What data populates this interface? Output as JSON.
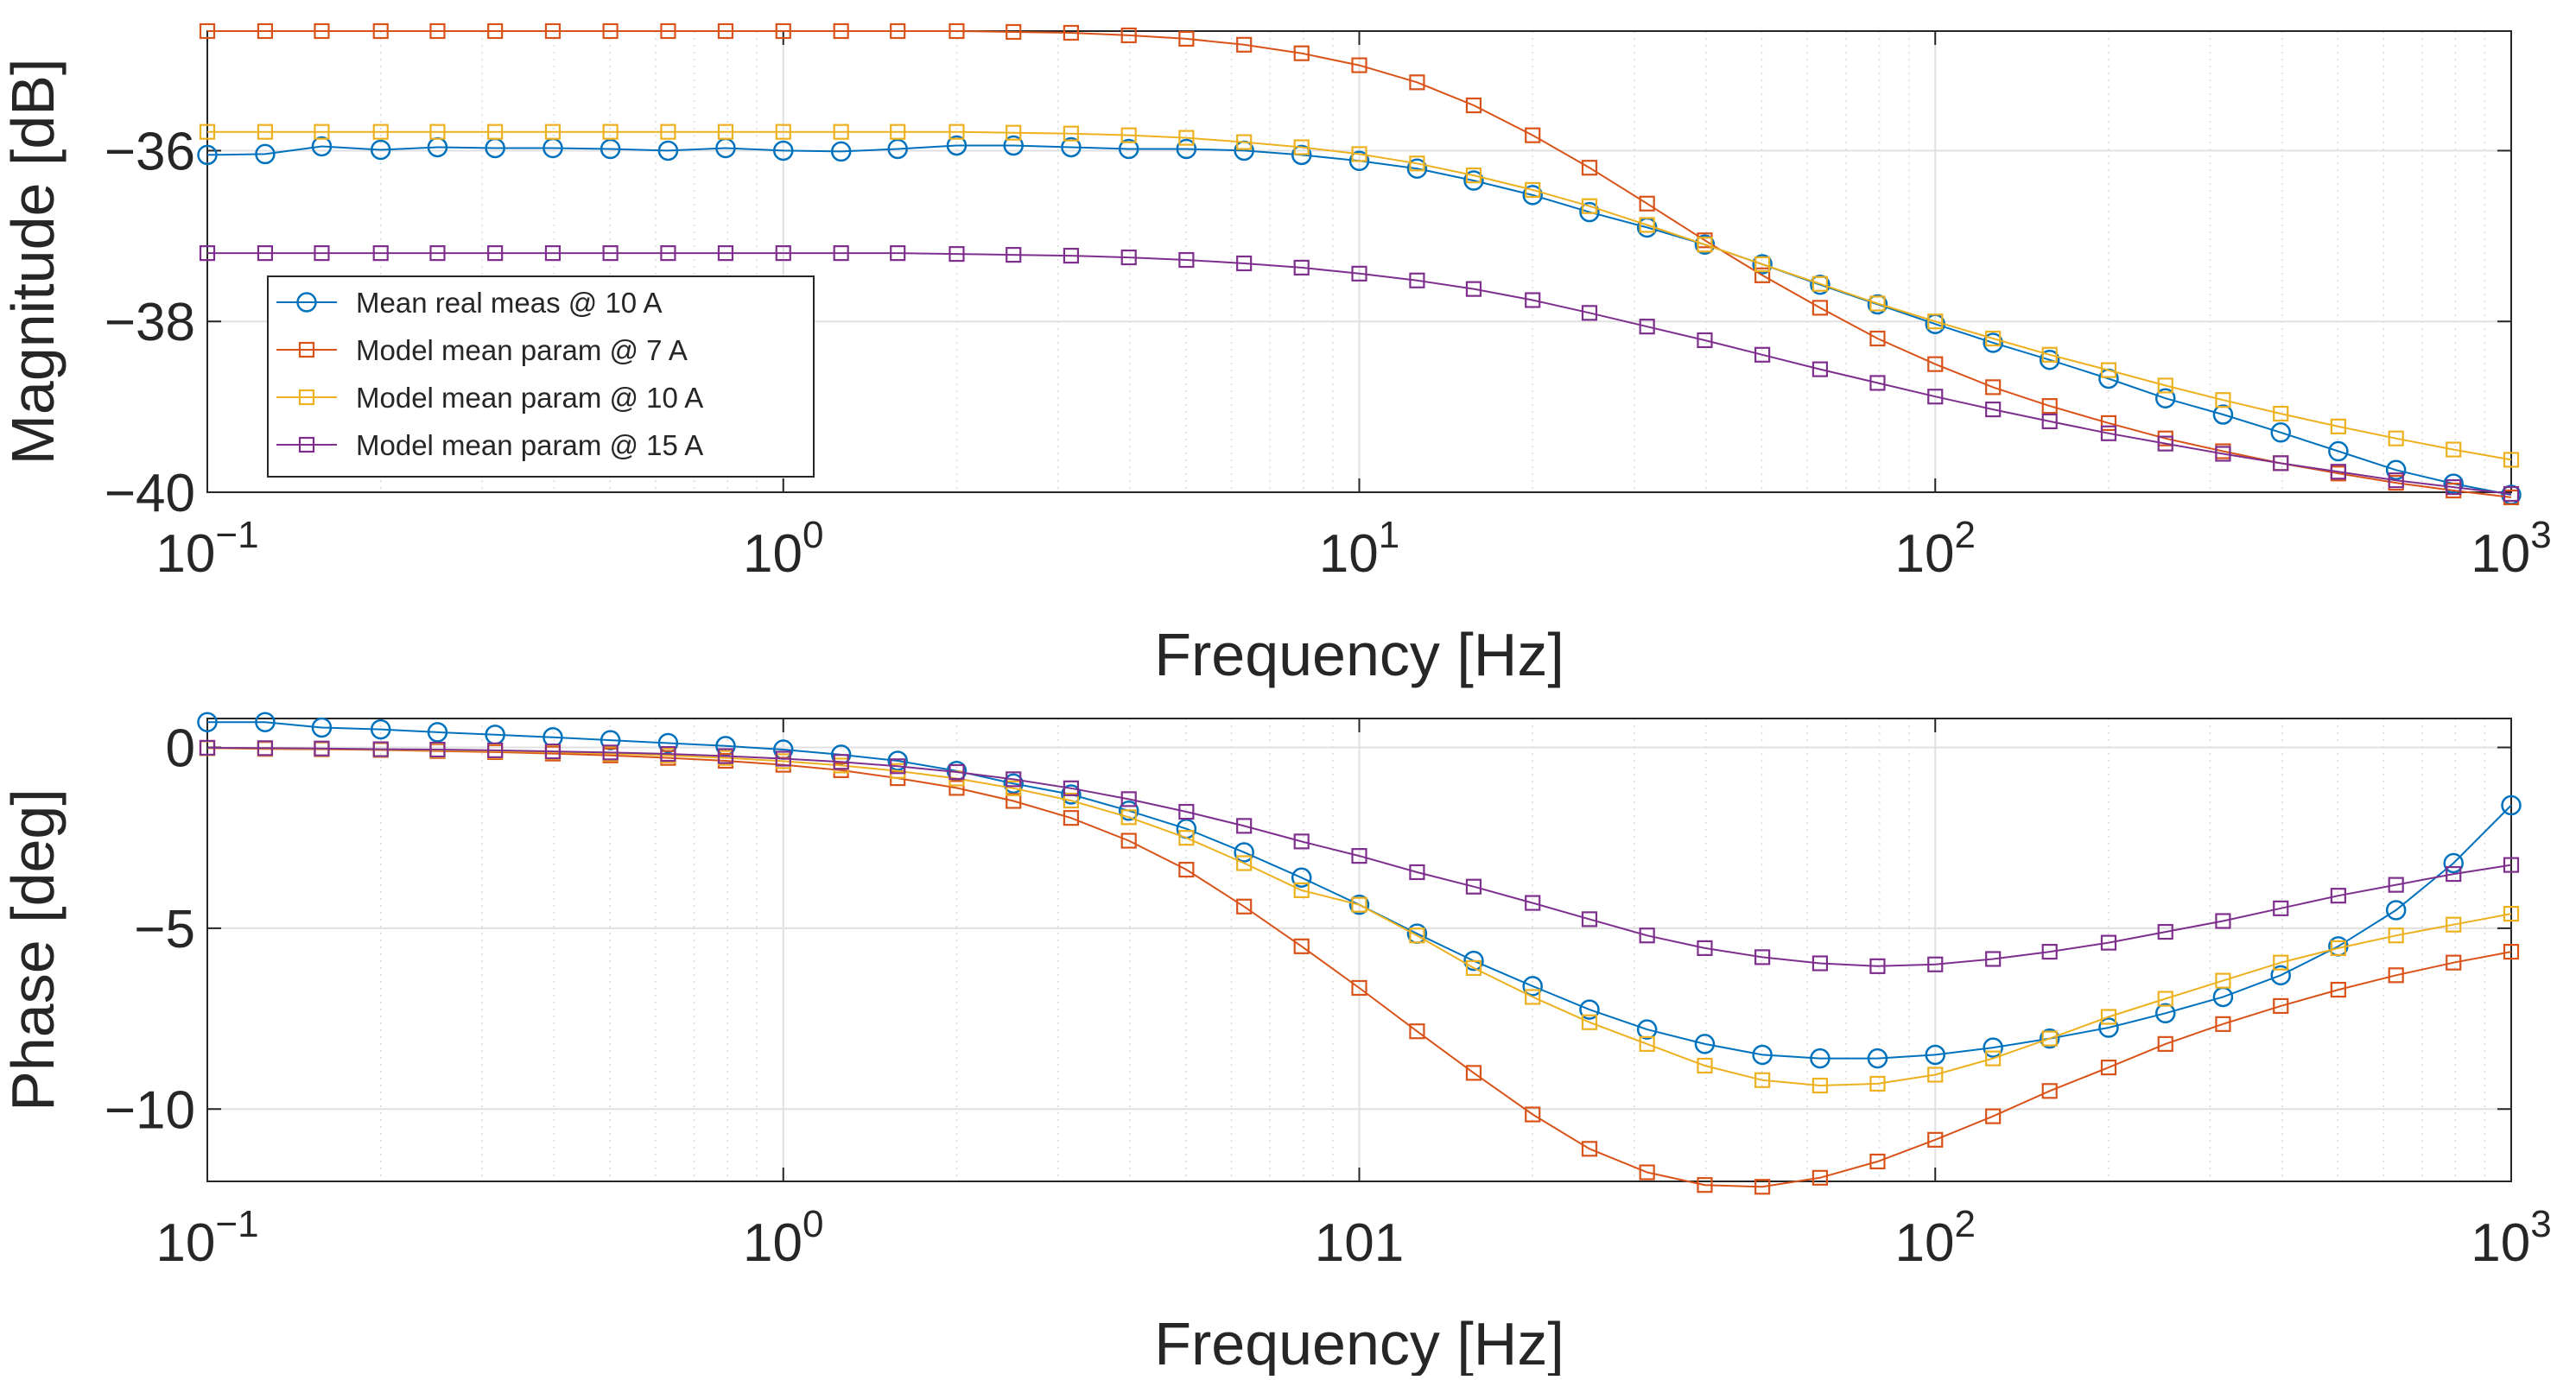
{
  "chart_data": [
    {
      "type": "line",
      "xscale": "log",
      "xlabel": "Frequency [Hz]",
      "ylabel": "Magnitude [dB]",
      "xlim": [
        0.1,
        1000
      ],
      "ylim": [
        -40,
        -34.6
      ],
      "xticks": [
        0.1,
        1,
        10,
        100,
        1000
      ],
      "xtick_labels": [
        [
          "10",
          "−1"
        ],
        [
          "10",
          "0"
        ],
        [
          "10",
          "1"
        ],
        [
          "10",
          "2"
        ],
        [
          "10",
          "3"
        ]
      ],
      "yticks": [
        -40,
        -38,
        -36
      ],
      "ytick_labels": [
        "−40",
        "−38",
        "−36"
      ],
      "grid": true,
      "legend": "left",
      "x": [
        0.1,
        0.126,
        0.158,
        0.2,
        0.251,
        0.316,
        0.398,
        0.501,
        0.631,
        0.794,
        1,
        1.26,
        1.58,
        2,
        2.51,
        3.16,
        3.98,
        5.01,
        6.31,
        7.94,
        10,
        12.6,
        15.8,
        20,
        25.1,
        31.6,
        39.8,
        50.1,
        63.1,
        79.4,
        100,
        126,
        158,
        200,
        251,
        316,
        398,
        501,
        631,
        794,
        1000
      ],
      "series": [
        {
          "name": "Mean real meas @ 10 A",
          "color": "#0072BD",
          "marker": "circle",
          "values": [
            -36.05,
            -36.04,
            -35.95,
            -35.99,
            -35.96,
            -35.97,
            -35.97,
            -35.98,
            -36.0,
            -35.97,
            -36.0,
            -36.01,
            -35.98,
            -35.94,
            -35.94,
            -35.96,
            -35.98,
            -35.98,
            -36.0,
            -36.05,
            -36.12,
            -36.21,
            -36.35,
            -36.52,
            -36.72,
            -36.9,
            -37.1,
            -37.33,
            -37.57,
            -37.8,
            -38.03,
            -38.25,
            -38.45,
            -38.67,
            -38.9,
            -39.09,
            -39.3,
            -39.52,
            -39.74,
            -39.9,
            -40.03
          ]
        },
        {
          "name": "Model mean param @ 7 A",
          "color": "#D95319",
          "marker": "square",
          "values": [
            -34.6,
            -34.6,
            -34.6,
            -34.6,
            -34.6,
            -34.6,
            -34.6,
            -34.6,
            -34.6,
            -34.6,
            -34.6,
            -34.6,
            -34.6,
            -34.6,
            -34.61,
            -34.62,
            -34.65,
            -34.69,
            -34.76,
            -34.86,
            -35.0,
            -35.2,
            -35.47,
            -35.82,
            -36.2,
            -36.62,
            -37.05,
            -37.46,
            -37.84,
            -38.2,
            -38.5,
            -38.77,
            -38.99,
            -39.19,
            -39.37,
            -39.52,
            -39.66,
            -39.78,
            -39.89,
            -39.98,
            -40.06
          ]
        },
        {
          "name": "Model mean param @ 10 A",
          "color": "#EDB120",
          "marker": "square",
          "values": [
            -35.78,
            -35.78,
            -35.78,
            -35.78,
            -35.78,
            -35.78,
            -35.78,
            -35.78,
            -35.78,
            -35.78,
            -35.78,
            -35.78,
            -35.78,
            -35.78,
            -35.79,
            -35.8,
            -35.82,
            -35.85,
            -35.9,
            -35.96,
            -36.04,
            -36.15,
            -36.29,
            -36.46,
            -36.65,
            -36.87,
            -37.1,
            -37.33,
            -37.56,
            -37.79,
            -38.0,
            -38.2,
            -38.39,
            -38.57,
            -38.75,
            -38.92,
            -39.08,
            -39.23,
            -39.37,
            -39.5,
            -39.62
          ]
        },
        {
          "name": "Model mean param @ 15 A",
          "color": "#7E2F8E",
          "marker": "square",
          "values": [
            -37.2,
            -37.2,
            -37.2,
            -37.2,
            -37.2,
            -37.2,
            -37.2,
            -37.2,
            -37.2,
            -37.2,
            -37.2,
            -37.2,
            -37.2,
            -37.21,
            -37.22,
            -37.23,
            -37.25,
            -37.28,
            -37.32,
            -37.37,
            -37.44,
            -37.52,
            -37.62,
            -37.75,
            -37.9,
            -38.06,
            -38.22,
            -38.39,
            -38.56,
            -38.72,
            -38.88,
            -39.03,
            -39.17,
            -39.31,
            -39.43,
            -39.55,
            -39.66,
            -39.76,
            -39.86,
            -39.94,
            -40.02
          ]
        }
      ]
    },
    {
      "type": "line",
      "xscale": "log",
      "xlabel": "Frequency [Hz]",
      "ylabel": "Phase [deg]",
      "xlim": [
        0.1,
        1000
      ],
      "ylim": [
        -12,
        0.8
      ],
      "xticks": [
        0.1,
        1,
        10,
        100,
        1000
      ],
      "xtick_labels": [
        [
          "10",
          "−1"
        ],
        [
          "10",
          "0"
        ],
        [
          "101",
          ""
        ],
        [
          "10",
          "2"
        ],
        [
          "10",
          "3"
        ]
      ],
      "yticks": [
        -10,
        -5,
        0
      ],
      "ytick_labels": [
        "−10",
        "−5",
        "0"
      ],
      "grid": true,
      "x": [
        0.1,
        0.126,
        0.158,
        0.2,
        0.251,
        0.316,
        0.398,
        0.501,
        0.631,
        0.794,
        1,
        1.26,
        1.58,
        2,
        2.51,
        3.16,
        3.98,
        5.01,
        6.31,
        7.94,
        10,
        12.6,
        15.8,
        20,
        25.1,
        31.6,
        39.8,
        50.1,
        63.1,
        79.4,
        100,
        126,
        158,
        200,
        251,
        316,
        398,
        501,
        631,
        794,
        1000
      ],
      "series": [
        {
          "name": "Mean real meas @ 10 A",
          "color": "#0072BD",
          "marker": "circle",
          "values": [
            0.7,
            0.7,
            0.55,
            0.5,
            0.42,
            0.35,
            0.28,
            0.2,
            0.12,
            0.04,
            -0.06,
            -0.2,
            -0.37,
            -0.65,
            -1.0,
            -1.3,
            -1.75,
            -2.25,
            -2.9,
            -3.6,
            -4.35,
            -5.15,
            -5.9,
            -6.6,
            -7.25,
            -7.8,
            -8.2,
            -8.5,
            -8.6,
            -8.6,
            -8.5,
            -8.3,
            -8.05,
            -7.75,
            -7.35,
            -6.9,
            -6.3,
            -5.5,
            -4.5,
            -3.2,
            -1.6
          ]
        },
        {
          "name": "Model mean param @ 7 A",
          "color": "#D95319",
          "marker": "square",
          "values": [
            -0.02,
            -0.04,
            -0.05,
            -0.07,
            -0.1,
            -0.13,
            -0.17,
            -0.22,
            -0.29,
            -0.37,
            -0.48,
            -0.63,
            -0.85,
            -1.12,
            -1.48,
            -1.95,
            -2.58,
            -3.38,
            -4.4,
            -5.5,
            -6.65,
            -7.85,
            -9.0,
            -10.15,
            -11.1,
            -11.75,
            -12.1,
            -12.15,
            -11.9,
            -11.45,
            -10.85,
            -10.2,
            -9.5,
            -8.85,
            -8.2,
            -7.65,
            -7.15,
            -6.7,
            -6.3,
            -5.95,
            -5.65
          ]
        },
        {
          "name": "Model mean param @ 10 A",
          "color": "#EDB120",
          "marker": "square",
          "values": [
            -0.02,
            -0.03,
            -0.04,
            -0.06,
            -0.08,
            -0.1,
            -0.13,
            -0.17,
            -0.22,
            -0.29,
            -0.38,
            -0.5,
            -0.65,
            -0.86,
            -1.13,
            -1.47,
            -1.93,
            -2.5,
            -3.2,
            -3.95,
            -4.35,
            -5.2,
            -6.1,
            -6.9,
            -7.6,
            -8.2,
            -8.8,
            -9.2,
            -9.35,
            -9.3,
            -9.05,
            -8.6,
            -8.05,
            -7.45,
            -6.95,
            -6.45,
            -5.95,
            -5.55,
            -5.2,
            -4.9,
            -4.6
          ]
        },
        {
          "name": "Model mean param @ 15 A",
          "color": "#7E2F8E",
          "marker": "square",
          "values": [
            -0.01,
            -0.02,
            -0.03,
            -0.05,
            -0.06,
            -0.08,
            -0.11,
            -0.14,
            -0.18,
            -0.24,
            -0.31,
            -0.4,
            -0.52,
            -0.68,
            -0.88,
            -1.13,
            -1.43,
            -1.78,
            -2.17,
            -2.6,
            -3.0,
            -3.45,
            -3.85,
            -4.3,
            -4.75,
            -5.2,
            -5.55,
            -5.8,
            -5.97,
            -6.05,
            -6.0,
            -5.85,
            -5.65,
            -5.4,
            -5.1,
            -4.8,
            -4.45,
            -4.1,
            -3.8,
            -3.5,
            -3.25
          ]
        }
      ]
    }
  ]
}
